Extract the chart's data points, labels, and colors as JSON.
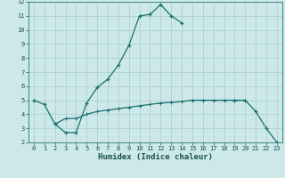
{
  "xlabel": "Humidex (Indice chaleur)",
  "bg_color": "#cce8e8",
  "grid_color": "#aacccc",
  "line_color": "#1a7070",
  "xlim": [
    -0.5,
    23.5
  ],
  "ylim": [
    2,
    12
  ],
  "yticks": [
    2,
    3,
    4,
    5,
    6,
    7,
    8,
    9,
    10,
    11,
    12
  ],
  "xticks": [
    0,
    1,
    2,
    3,
    4,
    5,
    6,
    7,
    8,
    9,
    10,
    11,
    12,
    13,
    14,
    15,
    16,
    17,
    18,
    19,
    20,
    21,
    22,
    23
  ],
  "series1_x": [
    0,
    1,
    2,
    3,
    4,
    5,
    6,
    7,
    8,
    9,
    10,
    11,
    12,
    13,
    14
  ],
  "series1_y": [
    5.0,
    4.7,
    3.3,
    2.7,
    2.7,
    4.8,
    5.9,
    6.5,
    7.5,
    8.9,
    11.0,
    11.1,
    11.8,
    11.0,
    10.5
  ],
  "series2_x": [
    19,
    20,
    21,
    22,
    23
  ],
  "series2_y": [
    5.0,
    5.0,
    4.2,
    3.0,
    2.0
  ],
  "series3_x": [
    2,
    3,
    4,
    5,
    6,
    7,
    8,
    9,
    10,
    11,
    12,
    13,
    14,
    15,
    16,
    17,
    18,
    19,
    20
  ],
  "series3_y": [
    3.3,
    3.7,
    3.7,
    4.0,
    4.2,
    4.3,
    4.4,
    4.5,
    4.6,
    4.7,
    4.8,
    4.85,
    4.9,
    5.0,
    5.0,
    5.0,
    5.0,
    5.0,
    5.0
  ]
}
